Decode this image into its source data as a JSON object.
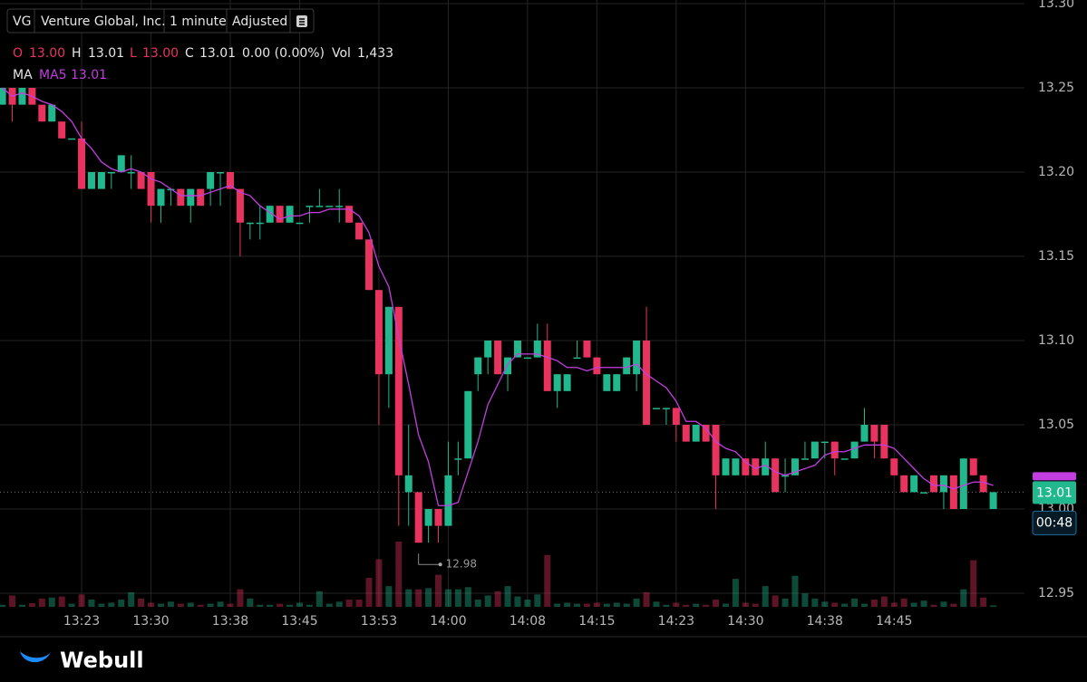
{
  "header": {
    "symbol": "VG",
    "name": "Venture Global, Inc.",
    "interval": "1 minute",
    "adjustment": "Adjusted"
  },
  "quote": {
    "items": [
      {
        "label": "O",
        "value": "13.00"
      },
      {
        "label": "H",
        "value": "13.01"
      },
      {
        "label": "L",
        "value": "13.00"
      },
      {
        "label": "C",
        "value": "13.01"
      }
    ],
    "change": "0.00 (0.00%)",
    "volume_label": "Vol",
    "volume": "1,433"
  },
  "indicator": {
    "label": "MA",
    "name": "MA5 13.01"
  },
  "last_price_tag": "13.01",
  "countdown": "00:48",
  "brand": "Webull",
  "chart_data": {
    "type": "candlestick",
    "categories": [
      null,
      null,
      null,
      null,
      null,
      null,
      null,
      null,
      "13:23",
      null,
      null,
      null,
      null,
      null,
      null,
      "13:30",
      null,
      null,
      null,
      null,
      null,
      null,
      null,
      "13:38",
      null,
      null,
      null,
      null,
      null,
      null,
      "13:45",
      null,
      null,
      null,
      null,
      null,
      null,
      null,
      "13:53",
      null,
      null,
      null,
      null,
      null,
      null,
      "14:00",
      null,
      null,
      null,
      null,
      null,
      null,
      null,
      "14:08",
      null,
      null,
      null,
      null,
      null,
      null,
      "14:15",
      null,
      null,
      null,
      null,
      null,
      null,
      null,
      "14:23",
      null,
      null,
      null,
      null,
      null,
      null,
      "14:30",
      null,
      null,
      null,
      null,
      null,
      null,
      null,
      "14:38",
      null,
      null,
      null,
      null,
      null,
      null,
      "14:45",
      null,
      null,
      null,
      null,
      null,
      null,
      null,
      null,
      null,
      null
    ],
    "open": [
      13.24,
      13.25,
      13.24,
      13.25,
      13.24,
      13.23,
      13.23,
      13.22,
      13.22,
      13.19,
      13.19,
      13.2,
      13.2,
      13.2,
      13.2,
      13.2,
      13.18,
      13.19,
      13.19,
      13.18,
      13.19,
      13.19,
      13.2,
      13.2,
      13.19,
      13.17,
      13.17,
      13.17,
      13.18,
      13.17,
      13.17,
      13.18,
      13.18,
      13.18,
      13.18,
      13.18,
      13.17,
      13.16,
      13.13,
      13.08,
      13.12,
      13.01,
      13.01,
      12.99,
      13.0,
      12.99,
      13.03,
      13.03,
      13.08,
      13.09,
      13.1,
      13.08,
      13.09,
      13.09,
      13.09,
      13.1,
      13.07,
      13.07,
      13.09,
      13.1,
      13.09,
      13.07,
      13.07,
      13.08,
      13.08,
      13.1,
      13.06,
      13.06,
      13.06,
      13.05,
      13.04,
      13.05,
      13.05,
      13.02,
      13.02,
      13.03,
      13.03,
      13.02,
      13.03,
      13.02,
      13.02,
      13.03,
      13.03,
      13.04,
      13.04,
      13.03,
      13.03,
      13.04,
      13.05,
      13.05,
      13.03,
      13.02,
      13.01,
      13.01,
      13.02,
      13.01,
      13.02,
      13.0,
      13.03,
      13.02,
      13.0
    ],
    "high": [
      13.25,
      13.25,
      13.25,
      13.25,
      13.24,
      13.24,
      13.23,
      13.22,
      13.23,
      13.2,
      13.2,
      13.2,
      13.21,
      13.21,
      13.2,
      13.2,
      13.19,
      13.19,
      13.19,
      13.19,
      13.19,
      13.2,
      13.2,
      13.2,
      13.19,
      13.17,
      13.18,
      13.18,
      13.18,
      13.18,
      13.17,
      13.18,
      13.19,
      13.18,
      13.19,
      13.18,
      13.17,
      13.16,
      13.13,
      13.12,
      13.12,
      13.05,
      13.01,
      13.0,
      13.0,
      13.04,
      13.04,
      13.07,
      13.09,
      13.1,
      13.1,
      13.09,
      13.1,
      13.09,
      13.11,
      13.11,
      13.08,
      13.08,
      13.1,
      13.1,
      13.09,
      13.08,
      13.08,
      13.09,
      13.1,
      13.12,
      13.06,
      13.06,
      13.06,
      13.05,
      13.05,
      13.05,
      13.05,
      13.03,
      13.03,
      13.03,
      13.03,
      13.04,
      13.03,
      13.03,
      13.03,
      13.04,
      13.04,
      13.04,
      13.04,
      13.03,
      13.04,
      13.06,
      13.05,
      13.05,
      13.03,
      13.02,
      13.02,
      13.01,
      13.02,
      13.02,
      13.02,
      13.03,
      13.03,
      13.02,
      13.01
    ],
    "low": [
      13.24,
      13.23,
      13.24,
      13.24,
      13.23,
      13.23,
      13.22,
      13.22,
      13.19,
      13.19,
      13.19,
      13.19,
      13.2,
      13.19,
      13.19,
      13.17,
      13.17,
      13.18,
      13.18,
      13.17,
      13.18,
      13.18,
      13.18,
      13.19,
      13.15,
      13.16,
      13.16,
      13.17,
      13.17,
      13.17,
      13.17,
      13.17,
      13.18,
      13.18,
      13.17,
      13.17,
      13.16,
      13.13,
      13.05,
      13.06,
      12.99,
      12.99,
      12.98,
      12.98,
      12.98,
      12.99,
      13.02,
      13.03,
      13.07,
      13.08,
      13.08,
      13.07,
      13.09,
      13.09,
      13.09,
      13.07,
      13.06,
      13.07,
      13.09,
      13.09,
      13.08,
      13.07,
      13.07,
      13.08,
      13.07,
      13.05,
      13.06,
      13.05,
      13.04,
      13.04,
      13.04,
      13.04,
      13.0,
      13.02,
      13.02,
      13.02,
      13.02,
      13.02,
      13.01,
      13.01,
      13.02,
      13.03,
      13.03,
      13.03,
      13.02,
      13.03,
      13.03,
      13.04,
      13.03,
      13.03,
      13.02,
      13.01,
      13.01,
      13.01,
      13.01,
      13.0,
      13.0,
      13.0,
      13.02,
      13.01,
      13.0
    ],
    "close": [
      13.25,
      13.24,
      13.25,
      13.24,
      13.23,
      13.24,
      13.22,
      13.22,
      13.19,
      13.2,
      13.2,
      13.2,
      13.21,
      13.2,
      13.19,
      13.18,
      13.19,
      13.19,
      13.18,
      13.19,
      13.18,
      13.2,
      13.2,
      13.19,
      13.17,
      13.17,
      13.17,
      13.18,
      13.17,
      13.18,
      13.17,
      13.18,
      13.18,
      13.18,
      13.18,
      13.17,
      13.16,
      13.13,
      13.08,
      13.12,
      13.02,
      13.02,
      12.98,
      13.0,
      12.99,
      13.02,
      13.03,
      13.07,
      13.09,
      13.1,
      13.08,
      13.09,
      13.1,
      13.09,
      13.1,
      13.07,
      13.08,
      13.08,
      13.09,
      13.09,
      13.08,
      13.08,
      13.08,
      13.09,
      13.1,
      13.05,
      13.06,
      13.06,
      13.05,
      13.04,
      13.05,
      13.04,
      13.02,
      13.03,
      13.03,
      13.02,
      13.02,
      13.03,
      13.01,
      13.02,
      13.03,
      13.03,
      13.04,
      13.04,
      13.03,
      13.03,
      13.04,
      13.05,
      13.04,
      13.03,
      13.02,
      13.01,
      13.02,
      13.01,
      13.01,
      13.02,
      13.0,
      13.03,
      13.02,
      13.01,
      13.01
    ],
    "ma5": [
      13.25,
      13.245,
      13.247,
      13.245,
      13.242,
      13.24,
      13.236,
      13.23,
      13.22,
      13.214,
      13.206,
      13.202,
      13.2,
      13.202,
      13.2,
      13.196,
      13.194,
      13.19,
      13.186,
      13.186,
      13.186,
      13.188,
      13.19,
      13.192,
      13.188,
      13.186,
      13.18,
      13.176,
      13.172,
      13.174,
      13.174,
      13.176,
      13.176,
      13.178,
      13.178,
      13.178,
      13.174,
      13.164,
      13.144,
      13.132,
      13.102,
      13.074,
      13.044,
      13.028,
      13.002,
      13.002,
      13.004,
      13.022,
      13.04,
      13.062,
      13.074,
      13.086,
      13.092,
      13.092,
      13.092,
      13.09,
      13.088,
      13.084,
      13.084,
      13.082,
      13.084,
      13.084,
      13.084,
      13.084,
      13.086,
      13.08,
      13.076,
      13.072,
      13.064,
      13.052,
      13.052,
      13.048,
      13.04,
      13.036,
      13.034,
      13.028,
      13.024,
      13.026,
      13.022,
      13.02,
      13.022,
      13.024,
      13.026,
      13.032,
      13.034,
      13.034,
      13.036,
      13.038,
      13.038,
      13.038,
      13.036,
      13.03,
      13.024,
      13.018,
      13.014,
      13.014,
      13.012,
      13.014,
      13.016,
      13.016,
      13.014
    ],
    "volume": [
      2000,
      11000,
      2000,
      3500,
      8000,
      9000,
      10000,
      3000,
      12000,
      7000,
      3000,
      4000,
      7000,
      14000,
      8000,
      4000,
      3000,
      5000,
      3000,
      4000,
      2000,
      3000,
      5000,
      3000,
      17000,
      8000,
      2000,
      2000,
      3000,
      2000,
      4000,
      2000,
      15000,
      3000,
      5000,
      7000,
      7000,
      28000,
      46000,
      20000,
      63000,
      17000,
      17000,
      18000,
      31000,
      17000,
      17000,
      19000,
      7000,
      11000,
      15000,
      20000,
      10000,
      7000,
      12000,
      50000,
      3000,
      4000,
      3000,
      3000,
      4000,
      3000,
      4000,
      3000,
      8000,
      14000,
      5000,
      2000,
      4000,
      2000,
      3000,
      2000,
      7000,
      3000,
      27000,
      4000,
      3000,
      20000,
      11000,
      8000,
      30000,
      13000,
      8000,
      5000,
      4000,
      3000,
      8000,
      3000,
      7000,
      10000,
      4000,
      8000,
      4000,
      6000,
      2000,
      5000,
      3000,
      17000,
      45000,
      9000,
      1433
    ],
    "low_annotation": 12.98,
    "up_color": "#22b88e",
    "down_color": "#e8335f",
    "ma_color": "#c23ee0",
    "ylim": [
      12.94,
      13.3
    ],
    "yticks": [
      12.95,
      {
        "value": 13.0,
        "label": "13.00"
      },
      13.05,
      {
        "value": 13.1,
        "label": "13.10"
      },
      13.15,
      {
        "value": 13.2,
        "label": "13.20"
      },
      13.25,
      {
        "value": 13.3,
        "label": "13.30"
      }
    ],
    "grid": true
  }
}
